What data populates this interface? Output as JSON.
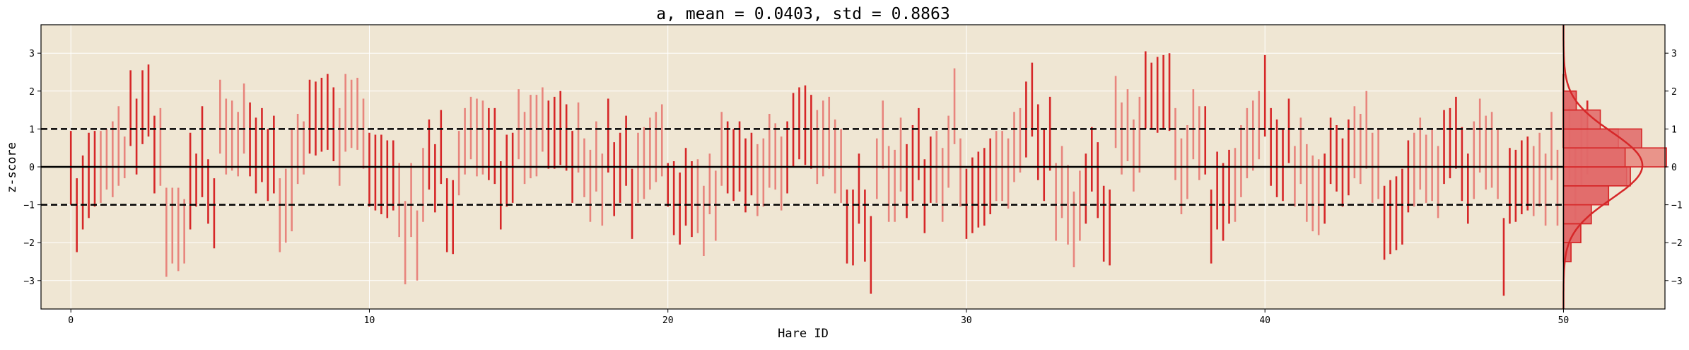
{
  "chart_data": {
    "type": "bar",
    "title": "a, mean = 0.0403, std = 0.8863",
    "xlabel": "Hare ID",
    "ylabel": "z-score",
    "xlim": [
      -1,
      53.4
    ],
    "ylim": [
      -3.75,
      3.75
    ],
    "xticks": [
      0,
      10,
      20,
      30,
      40,
      50
    ],
    "yticks": [
      -3,
      -2,
      -1,
      0,
      1,
      2,
      3
    ],
    "grid": true,
    "reference_lines": [
      {
        "y": 0,
        "style": "solid"
      },
      {
        "y": 1,
        "style": "dashed"
      },
      {
        "y": -1,
        "style": "dashed"
      }
    ],
    "colors": {
      "background": "#efe6d3",
      "dark_bar": "#d62728",
      "light_bar": "#e8857d",
      "hist_fill": "#e06666",
      "hist_edge": "#d62728",
      "grid": "#ffffff"
    },
    "series": [
      {
        "values": [
          [
            -1.0,
            0.95
          ],
          [
            -2.25,
            -0.3
          ],
          [
            -1.65,
            0.3
          ],
          [
            -1.35,
            0.9
          ],
          [
            -1.05,
            0.95
          ]
        ]
      },
      {
        "values": [
          [
            -0.95,
            0.95
          ],
          [
            -0.6,
            1.0
          ],
          [
            -0.8,
            1.2
          ],
          [
            -0.5,
            1.6
          ],
          [
            -0.3,
            0.8
          ]
        ]
      },
      {
        "values": [
          [
            0.55,
            2.55
          ],
          [
            -0.2,
            1.8
          ],
          [
            0.6,
            2.55
          ],
          [
            0.8,
            2.7
          ],
          [
            -0.7,
            1.35
          ]
        ]
      },
      {
        "values": [
          [
            -0.5,
            1.55
          ],
          [
            -2.9,
            -0.55
          ],
          [
            -2.55,
            -0.55
          ],
          [
            -2.75,
            -0.55
          ],
          [
            -2.55,
            -0.85
          ]
        ]
      },
      {
        "values": [
          [
            -1.65,
            0.9
          ],
          [
            -1.05,
            0.35
          ],
          [
            -0.8,
            1.6
          ],
          [
            -1.5,
            0.2
          ],
          [
            -2.15,
            -0.3
          ]
        ]
      },
      {
        "values": [
          [
            0.35,
            2.3
          ],
          [
            -0.2,
            1.8
          ],
          [
            -0.1,
            1.75
          ],
          [
            -0.25,
            1.45
          ],
          [
            0.35,
            2.2
          ]
        ]
      },
      {
        "values": [
          [
            -0.25,
            1.7
          ],
          [
            -0.7,
            1.3
          ],
          [
            -0.4,
            1.55
          ],
          [
            -0.9,
            1.0
          ],
          [
            -0.7,
            1.35
          ]
        ]
      },
      {
        "values": [
          [
            -2.25,
            -0.3
          ],
          [
            -2.0,
            -0.05
          ],
          [
            -1.7,
            1.0
          ],
          [
            -0.45,
            1.4
          ],
          [
            -0.2,
            1.2
          ]
        ]
      },
      {
        "values": [
          [
            0.35,
            2.3
          ],
          [
            0.3,
            2.25
          ],
          [
            0.4,
            2.35
          ],
          [
            0.45,
            2.45
          ],
          [
            0.15,
            2.1
          ]
        ]
      },
      {
        "values": [
          [
            -0.5,
            1.55
          ],
          [
            0.4,
            2.45
          ],
          [
            0.5,
            2.3
          ],
          [
            0.45,
            2.35
          ],
          [
            -0.05,
            1.8
          ]
        ]
      },
      {
        "values": [
          [
            -1.05,
            0.9
          ],
          [
            -1.15,
            0.85
          ],
          [
            -1.25,
            0.85
          ],
          [
            -1.35,
            0.7
          ],
          [
            -1.15,
            0.7
          ]
        ]
      },
      {
        "values": [
          [
            -1.85,
            0.1
          ],
          [
            -3.1,
            -0.9
          ],
          [
            -1.85,
            0.1
          ],
          [
            -3.0,
            -1.15
          ],
          [
            -1.45,
            0.5
          ]
        ]
      },
      {
        "values": [
          [
            -0.6,
            1.25
          ],
          [
            -1.2,
            0.6
          ],
          [
            -0.45,
            1.5
          ],
          [
            -2.25,
            -0.3
          ],
          [
            -2.3,
            -0.35
          ]
        ]
      },
      {
        "values": [
          [
            -0.75,
            0.95
          ],
          [
            -0.2,
            1.55
          ],
          [
            0.2,
            1.85
          ],
          [
            -0.25,
            1.8
          ],
          [
            -0.2,
            1.75
          ]
        ]
      },
      {
        "values": [
          [
            -0.35,
            1.55
          ],
          [
            -0.45,
            1.55
          ],
          [
            -1.65,
            0.15
          ],
          [
            -1.05,
            0.85
          ],
          [
            -0.95,
            0.9
          ]
        ]
      },
      {
        "values": [
          [
            0.2,
            2.05
          ],
          [
            -0.45,
            1.45
          ],
          [
            -0.3,
            1.9
          ],
          [
            -0.25,
            1.9
          ],
          [
            0.4,
            2.1
          ]
        ]
      },
      {
        "values": [
          [
            -0.05,
            1.75
          ],
          [
            -0.05,
            1.85
          ],
          [
            0.05,
            2.0
          ],
          [
            -0.1,
            1.65
          ],
          [
            -0.95,
            0.95
          ]
        ]
      },
      {
        "values": [
          [
            -0.15,
            1.7
          ],
          [
            -0.8,
            0.75
          ],
          [
            -1.45,
            0.45
          ],
          [
            -0.65,
            1.2
          ],
          [
            -1.55,
            0.35
          ]
        ]
      },
      {
        "values": [
          [
            -0.15,
            1.8
          ],
          [
            -1.3,
            0.65
          ],
          [
            -0.95,
            0.9
          ],
          [
            -0.5,
            1.35
          ],
          [
            -1.9,
            -0.05
          ]
        ]
      },
      {
        "values": [
          [
            -0.95,
            0.9
          ],
          [
            -0.85,
            1.05
          ],
          [
            -0.6,
            1.3
          ],
          [
            -0.4,
            1.45
          ],
          [
            -0.25,
            1.65
          ]
        ]
      },
      {
        "values": [
          [
            -1.05,
            0.1
          ],
          [
            -1.8,
            0.15
          ],
          [
            -2.05,
            -0.15
          ],
          [
            -1.55,
            0.5
          ],
          [
            -1.85,
            0.15
          ]
        ]
      },
      {
        "values": [
          [
            -1.75,
            0.2
          ],
          [
            -2.35,
            -0.5
          ],
          [
            -1.25,
            0.35
          ],
          [
            -1.95,
            -0.1
          ],
          [
            -0.5,
            1.45
          ]
        ]
      },
      {
        "values": [
          [
            -0.7,
            1.2
          ],
          [
            -0.9,
            1.0
          ],
          [
            -0.65,
            1.2
          ],
          [
            -1.2,
            0.75
          ],
          [
            -0.75,
            0.9
          ]
        ]
      },
      {
        "values": [
          [
            -1.3,
            0.6
          ],
          [
            -1.05,
            0.75
          ],
          [
            -0.55,
            1.4
          ],
          [
            -0.6,
            1.15
          ],
          [
            -1.15,
            0.8
          ]
        ]
      },
      {
        "values": [
          [
            -0.7,
            1.2
          ],
          [
            0.0,
            1.95
          ],
          [
            0.2,
            2.1
          ],
          [
            0.05,
            2.15
          ],
          [
            -0.05,
            1.9
          ]
        ]
      },
      {
        "values": [
          [
            -0.45,
            1.5
          ],
          [
            -0.25,
            1.75
          ],
          [
            -0.05,
            1.85
          ],
          [
            -0.7,
            1.25
          ],
          [
            -0.95,
            1.0
          ]
        ]
      },
      {
        "values": [
          [
            -2.55,
            -0.6
          ],
          [
            -2.6,
            -0.6
          ],
          [
            -1.5,
            0.35
          ],
          [
            -2.5,
            -0.6
          ],
          [
            -3.35,
            -1.3
          ]
        ]
      },
      {
        "values": [
          [
            -0.85,
            0.75
          ],
          [
            -0.05,
            1.75
          ],
          [
            -1.45,
            0.55
          ],
          [
            -1.45,
            0.45
          ],
          [
            -0.65,
            1.3
          ]
        ]
      },
      {
        "values": [
          [
            -1.35,
            0.6
          ],
          [
            -0.9,
            1.1
          ],
          [
            -0.35,
            1.55
          ],
          [
            -1.75,
            0.2
          ],
          [
            -0.95,
            0.8
          ]
        ]
      },
      {
        "values": [
          [
            -0.95,
            0.95
          ],
          [
            -1.45,
            0.5
          ],
          [
            -0.55,
            1.35
          ],
          [
            0.6,
            2.6
          ],
          [
            -1.05,
            0.75
          ]
        ]
      },
      {
        "values": [
          [
            -1.9,
            -0.05
          ],
          [
            -1.75,
            0.25
          ],
          [
            -1.6,
            0.4
          ],
          [
            -1.55,
            0.5
          ],
          [
            -1.25,
            0.75
          ]
        ]
      },
      {
        "values": [
          [
            -0.9,
            0.95
          ],
          [
            -0.9,
            0.95
          ],
          [
            -1.1,
            0.75
          ],
          [
            -0.4,
            1.45
          ],
          [
            -0.15,
            1.55
          ]
        ]
      },
      {
        "values": [
          [
            0.25,
            2.25
          ],
          [
            0.8,
            2.75
          ],
          [
            -0.35,
            1.65
          ],
          [
            -0.9,
            1.0
          ],
          [
            -0.1,
            1.85
          ]
        ]
      },
      {
        "values": [
          [
            -1.95,
            0.1
          ],
          [
            -1.35,
            0.55
          ],
          [
            -2.05,
            0.05
          ],
          [
            -2.65,
            -0.65
          ],
          [
            -1.95,
            -0.1
          ]
        ]
      },
      {
        "values": [
          [
            -1.5,
            0.35
          ],
          [
            -0.65,
            1.05
          ],
          [
            -1.35,
            0.65
          ],
          [
            -2.5,
            -0.5
          ],
          [
            -2.6,
            -0.6
          ]
        ]
      },
      {
        "values": [
          [
            0.5,
            2.4
          ],
          [
            -0.2,
            1.7
          ],
          [
            0.15,
            2.05
          ],
          [
            -0.65,
            1.25
          ],
          [
            -0.15,
            1.85
          ]
        ]
      },
      {
        "values": [
          [
            1.0,
            3.05
          ],
          [
            1.0,
            2.75
          ],
          [
            0.9,
            2.9
          ],
          [
            1.0,
            2.95
          ],
          [
            0.95,
            3.0
          ]
        ]
      },
      {
        "values": [
          [
            -0.35,
            1.55
          ],
          [
            -1.25,
            0.75
          ],
          [
            -0.85,
            1.1
          ],
          [
            0.2,
            2.05
          ],
          [
            -0.35,
            1.6
          ]
        ]
      },
      {
        "values": [
          [
            -0.2,
            1.6
          ],
          [
            -2.55,
            -0.6
          ],
          [
            -1.65,
            0.4
          ],
          [
            -1.95,
            0.1
          ],
          [
            -1.5,
            0.45
          ]
        ]
      },
      {
        "values": [
          [
            -1.45,
            0.5
          ],
          [
            -0.8,
            1.1
          ],
          [
            -0.3,
            1.55
          ],
          [
            -0.1,
            1.75
          ],
          [
            0.2,
            2.0
          ]
        ]
      },
      {
        "values": [
          [
            0.8,
            2.95
          ],
          [
            -0.5,
            1.55
          ],
          [
            -0.8,
            1.25
          ],
          [
            -0.9,
            1.0
          ],
          [
            0.1,
            1.8
          ]
        ]
      },
      {
        "values": [
          [
            -1.05,
            0.55
          ],
          [
            -0.45,
            1.3
          ],
          [
            -1.45,
            0.6
          ],
          [
            -1.7,
            0.3
          ],
          [
            -1.8,
            0.2
          ]
        ]
      },
      {
        "values": [
          [
            -1.5,
            0.35
          ],
          [
            -0.45,
            1.3
          ],
          [
            -0.65,
            1.1
          ],
          [
            -1.05,
            0.75
          ],
          [
            -0.75,
            1.25
          ]
        ]
      },
      {
        "values": [
          [
            -0.3,
            1.6
          ],
          [
            -0.45,
            1.4
          ],
          [
            -0.05,
            2.0
          ],
          [
            -0.95,
            0.9
          ],
          [
            -0.85,
            1.0
          ]
        ]
      },
      {
        "values": [
          [
            -2.45,
            -0.5
          ],
          [
            -2.3,
            -0.35
          ],
          [
            -2.2,
            -0.25
          ],
          [
            -2.05,
            -0.05
          ],
          [
            -1.2,
            0.7
          ]
        ]
      },
      {
        "values": [
          [
            -1.05,
            0.9
          ],
          [
            -0.6,
            1.3
          ],
          [
            -0.95,
            0.85
          ],
          [
            -0.9,
            1.0
          ],
          [
            -1.35,
            0.55
          ]
        ]
      },
      {
        "values": [
          [
            -0.45,
            1.5
          ],
          [
            -0.3,
            1.55
          ],
          [
            -0.05,
            1.85
          ],
          [
            -0.9,
            1.05
          ],
          [
            -1.5,
            0.35
          ]
        ]
      },
      {
        "values": [
          [
            -0.85,
            1.2
          ],
          [
            -0.15,
            1.8
          ],
          [
            -0.6,
            1.35
          ],
          [
            -0.55,
            1.45
          ],
          [
            -0.85,
            1.0
          ]
        ]
      },
      {
        "values": [
          [
            -3.4,
            -1.35
          ],
          [
            -1.5,
            0.5
          ],
          [
            -1.45,
            0.45
          ],
          [
            -1.25,
            0.7
          ],
          [
            -1.15,
            0.8
          ]
        ]
      },
      {
        "values": [
          [
            -1.3,
            0.55
          ],
          [
            -1.05,
            0.9
          ],
          [
            -1.55,
            0.35
          ],
          [
            -0.35,
            1.45
          ],
          [
            -1.55,
            0.45
          ]
        ]
      },
      {
        "values": [
          [
            0.5,
            2.45
          ],
          [
            -0.35,
            1.6
          ],
          [
            -1.4,
            0.5
          ],
          [
            -0.5,
            1.5
          ],
          [
            -0.2,
            1.75
          ]
        ]
      }
    ],
    "histogram": {
      "bin_edges": [
        -2.5,
        -2.0,
        -1.5,
        -1.0,
        -0.5,
        0.0,
        0.5,
        1.0,
        1.5,
        2.0
      ],
      "counts": [
        2,
        6,
        7,
        22,
        26,
        27,
        23,
        22,
        8,
        4
      ],
      "counts_note": "paired bars: first value = darker group, second = lighter group",
      "groups": [
        [
          1.0,
          1.0
        ],
        [
          2.3,
          2.3
        ],
        [
          3.7,
          3.7
        ],
        [
          6.0,
          6.0
        ],
        [
          8.9,
          8.4
        ],
        [
          8.2,
          13.7
        ],
        [
          10.4,
          7.3
        ],
        [
          4.9,
          3.2
        ],
        [
          1.7,
          1.7
        ]
      ]
    }
  }
}
